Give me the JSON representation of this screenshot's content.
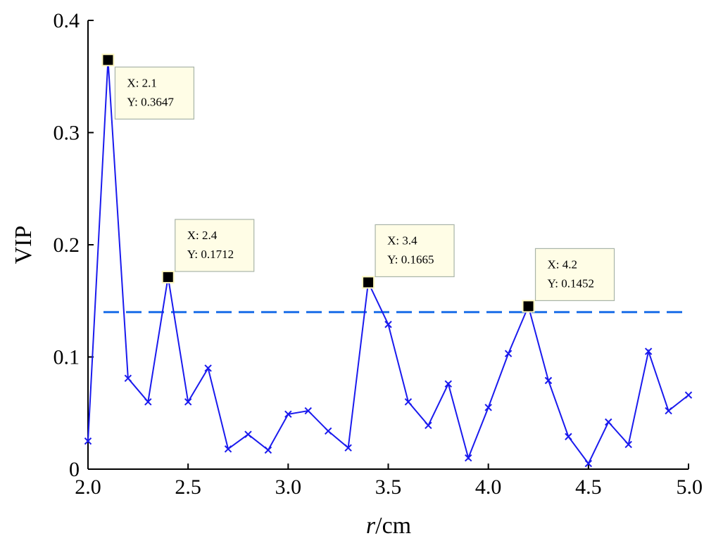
{
  "chart_data": {
    "type": "line",
    "x": [
      2.0,
      2.1,
      2.2,
      2.3,
      2.4,
      2.5,
      2.6,
      2.7,
      2.8,
      2.9,
      3.0,
      3.1,
      3.2,
      3.3,
      3.4,
      3.5,
      3.6,
      3.7,
      3.8,
      3.9,
      4.0,
      4.1,
      4.2,
      4.3,
      4.4,
      4.5,
      4.6,
      4.7,
      4.8,
      4.9,
      5.0
    ],
    "series": [
      {
        "values": [
          0.025,
          0.3647,
          0.081,
          0.06,
          0.1712,
          0.06,
          0.09,
          0.018,
          0.031,
          0.017,
          0.049,
          0.052,
          0.034,
          0.019,
          0.1665,
          0.129,
          0.06,
          0.039,
          0.076,
          0.01,
          0.055,
          0.103,
          0.1452,
          0.079,
          0.029,
          0.005,
          0.042,
          0.022,
          0.105,
          0.052,
          0.066
        ],
        "color": "#1a1aee",
        "marker": "x"
      }
    ],
    "threshold": {
      "y": 0.14,
      "style": "dashed",
      "color": "#1a6ee8"
    },
    "xlim": [
      2.0,
      5.0
    ],
    "ylim": [
      0,
      0.4
    ],
    "xticks": [
      "2.0",
      "2.5",
      "3.0",
      "3.5",
      "4.0",
      "4.5",
      "5.0"
    ],
    "yticks": [
      "0",
      "0.1",
      "0.2",
      "0.3",
      "0.4"
    ],
    "xlabel_italic": "r",
    "xlabel_unit": "/cm",
    "ylabel": "VIP",
    "grid": false,
    "datatips": [
      {
        "x": 2.1,
        "y": 0.3647,
        "x_text": "X: 2.1",
        "y_text": "Y: 0.3647"
      },
      {
        "x": 2.4,
        "y": 0.1712,
        "x_text": "X: 2.4",
        "y_text": "Y: 0.1712"
      },
      {
        "x": 3.4,
        "y": 0.1665,
        "x_text": "X: 3.4",
        "y_text": "Y: 0.1665"
      },
      {
        "x": 4.2,
        "y": 0.1452,
        "x_text": "X: 4.2",
        "y_text": "Y: 0.1452"
      }
    ],
    "tip_fill": "#fffde6",
    "tip_stroke": "#a8b4a8"
  }
}
